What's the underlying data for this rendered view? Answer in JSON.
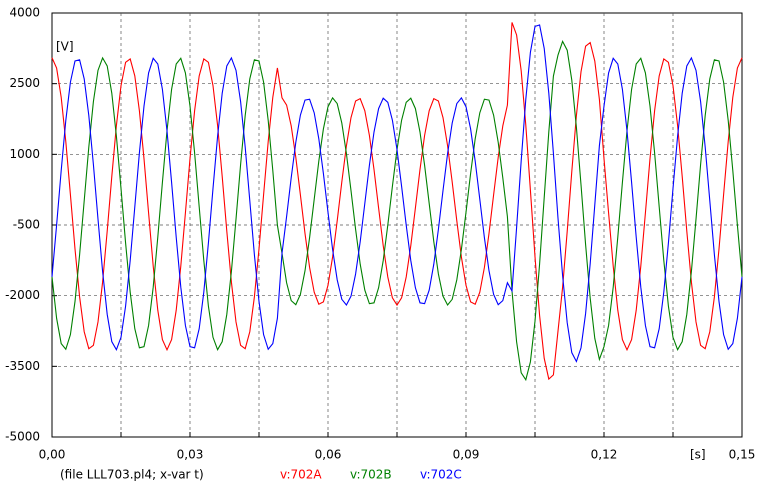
{
  "chart_data": {
    "type": "line",
    "y_label": "[V]",
    "x_label": "[s]",
    "caption": "(file LLL703.pl4; x-var t)",
    "x": [
      0,
      0.001,
      0.002,
      0.003,
      0.004,
      0.005,
      0.006,
      0.007,
      0.008,
      0.009,
      0.01,
      0.011,
      0.012,
      0.013,
      0.014,
      0.015,
      0.016,
      0.017,
      0.018,
      0.019,
      0.02,
      0.021,
      0.022,
      0.023,
      0.024,
      0.025,
      0.026,
      0.027,
      0.028,
      0.029,
      0.03,
      0.031,
      0.032,
      0.033,
      0.034,
      0.035,
      0.036,
      0.037,
      0.038,
      0.039,
      0.04,
      0.041,
      0.042,
      0.043,
      0.044,
      0.045,
      0.046,
      0.047,
      0.048,
      0.049,
      0.05,
      0.051,
      0.052,
      0.053,
      0.054,
      0.055,
      0.056,
      0.057,
      0.058,
      0.059,
      0.06,
      0.061,
      0.062,
      0.063,
      0.064,
      0.065,
      0.066,
      0.067,
      0.068,
      0.069,
      0.07,
      0.071,
      0.072,
      0.073,
      0.074,
      0.075,
      0.076,
      0.077,
      0.078,
      0.079,
      0.08,
      0.081,
      0.082,
      0.083,
      0.084,
      0.085,
      0.086,
      0.087,
      0.088,
      0.089,
      0.09,
      0.091,
      0.092,
      0.093,
      0.094,
      0.095,
      0.096,
      0.097,
      0.098,
      0.099,
      0.1,
      0.101,
      0.102,
      0.103,
      0.104,
      0.105,
      0.106,
      0.107,
      0.108,
      0.109,
      0.11,
      0.111,
      0.112,
      0.113,
      0.114,
      0.115,
      0.116,
      0.117,
      0.118,
      0.119,
      0.12,
      0.121,
      0.122,
      0.123,
      0.124,
      0.125,
      0.126,
      0.127,
      0.128,
      0.129,
      0.13,
      0.131,
      0.132,
      0.133,
      0.134,
      0.135,
      0.136,
      0.137,
      0.138,
      0.139,
      0.14,
      0.141,
      0.142,
      0.143,
      0.144,
      0.145,
      0.146,
      0.147,
      0.148,
      0.149,
      0.15
    ],
    "series": [
      {
        "name": "v:702A",
        "color": "#ff0000",
        "values": [
          3050,
          2833,
          2210,
          1271,
          145,
          -1008,
          -2025,
          -2766,
          -3125,
          -3054,
          -2558,
          -1712,
          -630,
          530,
          1612,
          2458,
          2954,
          3025,
          2666,
          1925,
          908,
          -245,
          -1371,
          -2310,
          -2933,
          -3150,
          -2933,
          -2310,
          -1371,
          -245,
          908,
          1925,
          2666,
          3025,
          2954,
          2458,
          1612,
          530,
          -630,
          -1712,
          -2558,
          -3054,
          -3125,
          -2766,
          -2025,
          -1008,
          145,
          1271,
          2210,
          2833,
          2200,
          2046,
          1604,
          937,
          139,
          -680,
          -1401,
          -1927,
          -2182,
          -2132,
          -1780,
          -1179,
          -411,
          411,
          1179,
          1780,
          2132,
          2182,
          1927,
          1401,
          680,
          -139,
          -937,
          -1604,
          -2046,
          -2200,
          -2046,
          -1604,
          -937,
          -139,
          680,
          1401,
          1927,
          2182,
          2132,
          1780,
          1179,
          411,
          -411,
          -1179,
          -1780,
          -2132,
          -2182,
          -1927,
          -1401,
          -680,
          139,
          937,
          1604,
          2046,
          3800,
          3534,
          2770,
          1619,
          239,
          -1174,
          -2421,
          -3329,
          -3770,
          -3682,
          -2751,
          -1822,
          -636,
          636,
          1822,
          2751,
          3295,
          3373,
          2978,
          2166,
          908,
          -245,
          -1371,
          -2310,
          -2933,
          -3150,
          -2933,
          -2310,
          -1371,
          -245,
          908,
          1925,
          2666,
          3025,
          2954,
          2458,
          1612,
          530,
          -630,
          -1712,
          -2558,
          -3054,
          -3125,
          -2766,
          -2025,
          -1008,
          145,
          1271,
          2210,
          2833,
          3050
        ]
      },
      {
        "name": "v:702B",
        "color": "#008000",
        "values": [
          -1600,
          -2480,
          -3017,
          -3138,
          -2828,
          -2124,
          -1132,
          15,
          1153,
          2120,
          2783,
          3047,
          2876,
          2297,
          1385,
          276,
          -884,
          -1926,
          -2701,
          -3107,
          -3082,
          -2632,
          -1820,
          -757,
          403,
          1500,
          2380,
          2917,
          3038,
          2728,
          2024,
          1032,
          -115,
          -1253,
          -2220,
          -2883,
          -3147,
          -2976,
          -2397,
          -1485,
          -376,
          784,
          1826,
          2601,
          3007,
          2982,
          2532,
          1720,
          657,
          -503,
          -1100,
          -1725,
          -2105,
          -2191,
          -1971,
          -1472,
          -768,
          46,
          854,
          1540,
          2011,
          2198,
          2077,
          1665,
          1019,
          231,
          -592,
          -1331,
          -1881,
          -2169,
          -2152,
          -1833,
          -1256,
          -502,
          321,
          1100,
          1725,
          2105,
          2191,
          1971,
          1472,
          768,
          -46,
          -854,
          -1540,
          -2011,
          -2198,
          -2077,
          -1665,
          -1019,
          -231,
          592,
          1331,
          1881,
          2169,
          2152,
          1833,
          1256,
          502,
          -321,
          -1900,
          -2979,
          -3637,
          -3785,
          -3405,
          -2542,
          -1326,
          80,
          1474,
          2660,
          3108,
          3397,
          3210,
          2574,
          1574,
          357,
          -915,
          -2057,
          -2907,
          -3352,
          -3082,
          -2632,
          -1820,
          -757,
          403,
          1500,
          2380,
          2917,
          3038,
          2728,
          2024,
          1032,
          -115,
          -1253,
          -2220,
          -2883,
          -3147,
          -2976,
          -2397,
          -1485,
          -376,
          784,
          1826,
          2601,
          3007,
          2982,
          2532,
          1720,
          657,
          -503,
          -1600
        ]
      },
      {
        "name": "v:702C",
        "color": "#0000ff",
        "values": [
          -1600,
          -503,
          657,
          1720,
          2532,
          2982,
          3007,
          2601,
          1826,
          784,
          -376,
          -1485,
          -2397,
          -2976,
          -3147,
          -2883,
          -2220,
          -1253,
          -115,
          1032,
          2024,
          2728,
          3038,
          2917,
          2380,
          1500,
          403,
          -757,
          -1820,
          -2632,
          -3082,
          -3107,
          -2701,
          -1926,
          -884,
          276,
          1385,
          2297,
          2876,
          3047,
          2783,
          2120,
          1153,
          15,
          -1132,
          -2124,
          -2828,
          -3138,
          -3017,
          -2480,
          -1100,
          -321,
          502,
          1256,
          1833,
          2152,
          2169,
          1881,
          1331,
          592,
          -231,
          -1019,
          -1665,
          -2077,
          -2198,
          -2011,
          -1540,
          -854,
          -46,
          768,
          1472,
          1971,
          2191,
          2105,
          1725,
          1100,
          321,
          -502,
          -1256,
          -1833,
          -2152,
          -2169,
          -1881,
          -1331,
          -592,
          231,
          1019,
          1665,
          2077,
          2198,
          2011,
          1540,
          854,
          46,
          -768,
          -1472,
          -1971,
          -2191,
          -2105,
          -1725,
          -1900,
          -555,
          866,
          2170,
          3165,
          3716,
          3747,
          3249,
          2299,
          1022,
          -357,
          -1574,
          -2574,
          -3210,
          -3397,
          -3108,
          -2380,
          -1319,
          -71,
          1187,
          2024,
          2728,
          3038,
          2917,
          2380,
          1500,
          403,
          -757,
          -1820,
          -2632,
          -3082,
          -3107,
          -2701,
          -1926,
          -884,
          276,
          1385,
          2297,
          2876,
          3047,
          2783,
          2120,
          1153,
          15,
          -1132,
          -2124,
          -2828,
          -3138,
          -3017,
          -2480,
          -1600
        ]
      }
    ],
    "xlim": [
      0,
      0.15
    ],
    "xticks": [
      {
        "value": 0,
        "label": "0,00"
      },
      {
        "value": 0.03,
        "label": "0,03"
      },
      {
        "value": 0.06,
        "label": "0,06"
      },
      {
        "value": 0.09,
        "label": "0,09"
      },
      {
        "value": 0.12,
        "label": "0,12"
      },
      {
        "value": 0.15,
        "label": "0,15"
      }
    ],
    "ylim": [
      -5000,
      4000
    ],
    "yticks": [
      -5000,
      -3500,
      -2000,
      -500,
      1000,
      2500,
      4000
    ],
    "grid": true
  }
}
